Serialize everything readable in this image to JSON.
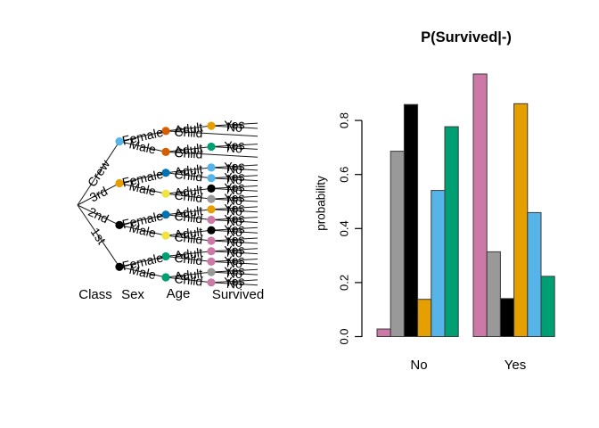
{
  "figure": {
    "background": "#ffffff",
    "line_color": "#1a1a1a"
  },
  "tree": {
    "axis_labels": [
      "Class",
      "Sex",
      "Age",
      "Survived"
    ],
    "classes": [
      {
        "label": "Crew",
        "color": "#56B4E9",
        "sexes": [
          {
            "label": "Female",
            "color": "#D55E00",
            "ages": [
              {
                "label": "Adult",
                "color": "#E69F00",
                "leaves": [
                  "Yes",
                  "No"
                ]
              },
              {
                "label": "Child",
                "color": null,
                "leaves": []
              }
            ]
          },
          {
            "label": "Male",
            "color": "#D55E00",
            "ages": [
              {
                "label": "Adult",
                "color": "#009E73",
                "leaves": [
                  "Yes",
                  "No"
                ]
              },
              {
                "label": "Child",
                "color": null,
                "leaves": []
              }
            ]
          }
        ]
      },
      {
        "label": "3rd",
        "color": "#E69F00",
        "sexes": [
          {
            "label": "Female",
            "color": "#0072B2",
            "ages": [
              {
                "label": "Adult",
                "color": "#56B4E9",
                "leaves": [
                  "Yes",
                  "No"
                ]
              },
              {
                "label": "Child",
                "color": "#56B4E9",
                "leaves": [
                  "Yes",
                  "No"
                ]
              }
            ]
          },
          {
            "label": "Male",
            "color": "#F0E442",
            "ages": [
              {
                "label": "Adult",
                "color": "#000000",
                "leaves": [
                  "Yes",
                  "No"
                ]
              },
              {
                "label": "Child",
                "color": "#999999",
                "leaves": [
                  "Yes",
                  "No"
                ]
              }
            ]
          }
        ]
      },
      {
        "label": "2nd",
        "color": "#000000",
        "sexes": [
          {
            "label": "Female",
            "color": "#0072B2",
            "ages": [
              {
                "label": "Adult",
                "color": "#E69F00",
                "leaves": [
                  "Yes",
                  "No"
                ]
              },
              {
                "label": "Child",
                "color": "#CC79A7",
                "leaves": [
                  "Yes",
                  "No"
                ]
              }
            ]
          },
          {
            "label": "Male",
            "color": "#F0E442",
            "ages": [
              {
                "label": "Adult",
                "color": "#000000",
                "leaves": [
                  "Yes",
                  "No"
                ]
              },
              {
                "label": "Child",
                "color": "#CC79A7",
                "leaves": [
                  "Yes",
                  "No"
                ]
              }
            ]
          }
        ]
      },
      {
        "label": "1st",
        "color": "#000000",
        "sexes": [
          {
            "label": "Female",
            "color": "#009E73",
            "ages": [
              {
                "label": "Adult",
                "color": "#CC79A7",
                "leaves": [
                  "Yes",
                  "No"
                ]
              },
              {
                "label": "Child",
                "color": "#CC79A7",
                "leaves": [
                  "Yes",
                  "No"
                ]
              }
            ]
          },
          {
            "label": "Male",
            "color": "#009E73",
            "ages": [
              {
                "label": "Adult",
                "color": "#999999",
                "leaves": [
                  "Yes",
                  "No"
                ]
              },
              {
                "label": "Child",
                "color": "#CC79A7",
                "leaves": [
                  "Yes",
                  "No"
                ]
              }
            ]
          }
        ]
      }
    ]
  },
  "chart_data": {
    "type": "bar",
    "title": "P(Survived|-)",
    "ylabel": "probability",
    "categories": [
      "No",
      "Yes"
    ],
    "yticks": [
      "0.0",
      "0.2",
      "0.4",
      "0.6",
      "0.8"
    ],
    "ylim": [
      0,
      1
    ],
    "grid": false,
    "legend": "none",
    "bar_border_color": "#3a3a3a",
    "series": [
      {
        "name": "pink-group",
        "color": "#CC79A7",
        "values": [
          0.028,
          0.972
        ]
      },
      {
        "name": "gray-group",
        "color": "#999999",
        "values": [
          0.686,
          0.314
        ]
      },
      {
        "name": "black-group",
        "color": "#000000",
        "values": [
          0.859,
          0.141
        ]
      },
      {
        "name": "orange-group",
        "color": "#E69F00",
        "values": [
          0.138,
          0.862
        ]
      },
      {
        "name": "skyblue-group",
        "color": "#56B4E9",
        "values": [
          0.541,
          0.459
        ]
      },
      {
        "name": "green-group",
        "color": "#009E73",
        "values": [
          0.777,
          0.223
        ]
      }
    ]
  }
}
